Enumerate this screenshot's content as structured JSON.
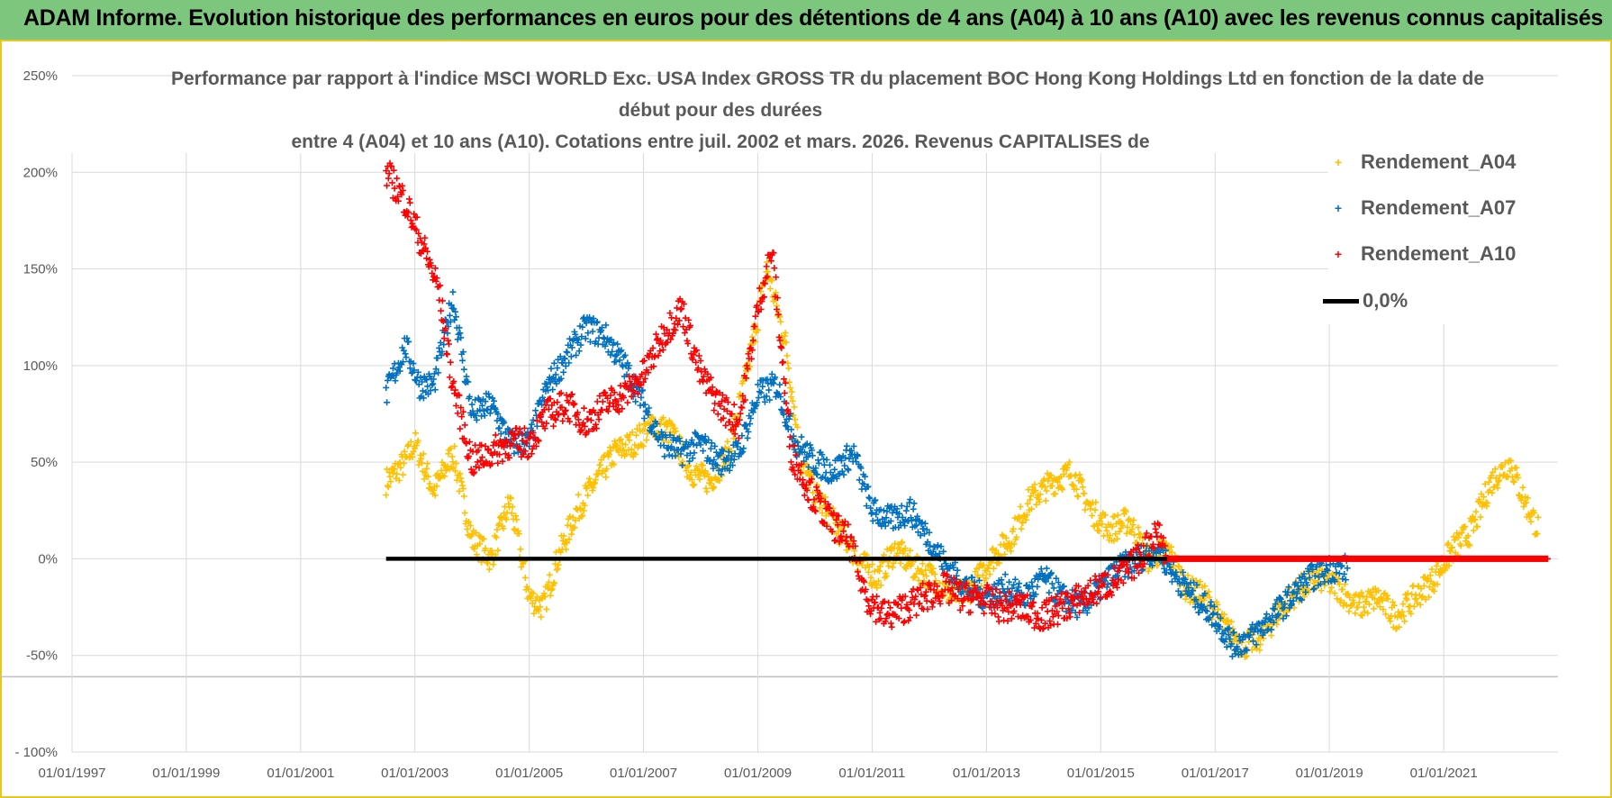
{
  "header": {
    "title": "ADAM Informe. Evolution historique des performances en euros pour des détentions de 4 ans (A04) à 10 ans (A10) avec les revenus connus capitalisés"
  },
  "chart_data": {
    "type": "scatter",
    "title_lines": [
      "Performance par rapport à l'indice MSCI WORLD Exc. USA Index GROSS TR  du placement BOC Hong Kong Holdings Ltd en fonction de la date de",
      "début pour des durées",
      "entre 4 (A04) et 10 ans (A10). Cotations entre juil. 2002 et mars. 2026. Revenus CAPITALISES de"
    ],
    "xlabel": "",
    "ylabel": "",
    "ylim": [
      -100,
      250
    ],
    "xlim": [
      "1997-01-01",
      "2023-01-01"
    ],
    "x_ticks": [
      "01/01/1997",
      "01/01/1999",
      "01/01/2001",
      "01/01/2003",
      "01/01/2005",
      "01/01/2007",
      "01/01/2009",
      "01/01/2011",
      "01/01/2013",
      "01/01/2015",
      "01/01/2017",
      "01/01/2019",
      "01/01/2021"
    ],
    "y_ticks": [
      "250%",
      "200%",
      "150%",
      "100%",
      "50%",
      "0%",
      "-50%",
      "- 100%"
    ],
    "y_tick_values": [
      250,
      200,
      150,
      100,
      50,
      0,
      -50,
      -100
    ],
    "grid": true,
    "legend_position": "top-right",
    "series": [
      {
        "name": "Rendement_A04",
        "color": "#ffc000",
        "marker": "plus",
        "points": [
          [
            "2002-07-01",
            40
          ],
          [
            "2002-11-01",
            50
          ],
          [
            "2003-01-01",
            60
          ],
          [
            "2003-05-01",
            35
          ],
          [
            "2003-09-01",
            55
          ],
          [
            "2004-01-01",
            10
          ],
          [
            "2004-05-01",
            0
          ],
          [
            "2004-09-01",
            30
          ],
          [
            "2005-01-01",
            -20
          ],
          [
            "2005-04-01",
            -25
          ],
          [
            "2005-07-01",
            0
          ],
          [
            "2005-11-01",
            25
          ],
          [
            "2006-03-01",
            40
          ],
          [
            "2006-07-01",
            55
          ],
          [
            "2006-11-01",
            60
          ],
          [
            "2007-03-01",
            70
          ],
          [
            "2007-07-01",
            65
          ],
          [
            "2007-11-01",
            45
          ],
          [
            "2008-03-01",
            40
          ],
          [
            "2008-07-01",
            55
          ],
          [
            "2008-11-01",
            100
          ],
          [
            "2009-03-01",
            150
          ],
          [
            "2009-07-01",
            110
          ],
          [
            "2009-10-01",
            50
          ],
          [
            "2010-02-01",
            30
          ],
          [
            "2010-06-01",
            15
          ],
          [
            "2010-10-01",
            0
          ],
          [
            "2011-02-01",
            -10
          ],
          [
            "2011-06-01",
            5
          ],
          [
            "2011-10-01",
            -5
          ],
          [
            "2012-02-01",
            -10
          ],
          [
            "2012-06-01",
            -20
          ],
          [
            "2012-10-01",
            -15
          ],
          [
            "2013-02-01",
            0
          ],
          [
            "2013-06-01",
            10
          ],
          [
            "2013-10-01",
            30
          ],
          [
            "2014-03-01",
            40
          ],
          [
            "2014-07-01",
            45
          ],
          [
            "2014-11-01",
            25
          ],
          [
            "2015-03-01",
            15
          ],
          [
            "2015-07-01",
            20
          ],
          [
            "2015-11-01",
            0
          ],
          [
            "2016-03-01",
            5
          ],
          [
            "2016-07-01",
            -15
          ],
          [
            "2016-11-01",
            -20
          ],
          [
            "2017-03-01",
            -35
          ],
          [
            "2017-07-01",
            -45
          ],
          [
            "2017-11-01",
            -40
          ],
          [
            "2018-03-01",
            -25
          ],
          [
            "2018-07-01",
            -15
          ],
          [
            "2018-11-01",
            -10
          ],
          [
            "2019-03-01",
            -15
          ],
          [
            "2019-07-01",
            -25
          ],
          [
            "2019-11-01",
            -20
          ],
          [
            "2020-03-01",
            -30
          ],
          [
            "2020-07-01",
            -20
          ],
          [
            "2020-11-01",
            -10
          ],
          [
            "2021-03-01",
            5
          ],
          [
            "2021-07-01",
            15
          ],
          [
            "2021-11-01",
            40
          ],
          [
            "2022-03-01",
            50
          ],
          [
            "2022-06-01",
            30
          ],
          [
            "2022-09-01",
            15
          ]
        ]
      },
      {
        "name": "Rendement_A07",
        "color": "#0070c0",
        "marker": "plus",
        "points": [
          [
            "2002-07-01",
            85
          ],
          [
            "2002-11-01",
            110
          ],
          [
            "2003-02-01",
            90
          ],
          [
            "2003-05-01",
            90
          ],
          [
            "2003-09-01",
            135
          ],
          [
            "2004-01-01",
            75
          ],
          [
            "2004-05-01",
            80
          ],
          [
            "2004-09-01",
            60
          ],
          [
            "2005-01-01",
            60
          ],
          [
            "2005-05-01",
            90
          ],
          [
            "2005-09-01",
            105
          ],
          [
            "2006-01-01",
            120
          ],
          [
            "2006-05-01",
            115
          ],
          [
            "2006-09-01",
            100
          ],
          [
            "2007-01-01",
            80
          ],
          [
            "2007-05-01",
            60
          ],
          [
            "2007-09-01",
            55
          ],
          [
            "2008-01-01",
            60
          ],
          [
            "2008-05-01",
            50
          ],
          [
            "2008-09-01",
            55
          ],
          [
            "2009-01-01",
            85
          ],
          [
            "2009-05-01",
            90
          ],
          [
            "2009-09-01",
            60
          ],
          [
            "2010-01-01",
            50
          ],
          [
            "2010-05-01",
            45
          ],
          [
            "2010-09-01",
            55
          ],
          [
            "2011-01-01",
            25
          ],
          [
            "2011-05-01",
            20
          ],
          [
            "2011-09-01",
            25
          ],
          [
            "2012-01-01",
            10
          ],
          [
            "2012-05-01",
            -5
          ],
          [
            "2012-09-01",
            -15
          ],
          [
            "2013-01-01",
            -20
          ],
          [
            "2013-05-01",
            -15
          ],
          [
            "2013-09-01",
            -20
          ],
          [
            "2014-01-01",
            -10
          ],
          [
            "2014-05-01",
            -20
          ],
          [
            "2014-09-01",
            -25
          ],
          [
            "2015-01-01",
            -15
          ],
          [
            "2015-05-01",
            -5
          ],
          [
            "2015-09-01",
            0
          ],
          [
            "2016-01-01",
            5
          ],
          [
            "2016-05-01",
            -10
          ],
          [
            "2016-09-01",
            -20
          ],
          [
            "2017-01-01",
            -30
          ],
          [
            "2017-05-01",
            -45
          ],
          [
            "2017-09-01",
            -40
          ],
          [
            "2018-01-01",
            -30
          ],
          [
            "2018-05-01",
            -20
          ],
          [
            "2018-09-01",
            -10
          ],
          [
            "2019-01-01",
            -5
          ],
          [
            "2019-05-01",
            -5
          ]
        ]
      },
      {
        "name": "Rendement_A10",
        "color": "#ff0000",
        "marker": "plus",
        "points": [
          [
            "2002-07-01",
            200
          ],
          [
            "2002-11-01",
            185
          ],
          [
            "2003-03-01",
            160
          ],
          [
            "2003-06-01",
            140
          ],
          [
            "2003-09-01",
            90
          ],
          [
            "2004-01-01",
            50
          ],
          [
            "2004-05-01",
            55
          ],
          [
            "2004-09-01",
            60
          ],
          [
            "2005-01-01",
            60
          ],
          [
            "2005-05-01",
            75
          ],
          [
            "2005-09-01",
            80
          ],
          [
            "2006-01-01",
            70
          ],
          [
            "2006-05-01",
            80
          ],
          [
            "2006-09-01",
            85
          ],
          [
            "2007-01-01",
            95
          ],
          [
            "2007-05-01",
            115
          ],
          [
            "2007-09-01",
            130
          ],
          [
            "2008-01-01",
            95
          ],
          [
            "2008-05-01",
            80
          ],
          [
            "2008-09-01",
            70
          ],
          [
            "2009-01-01",
            130
          ],
          [
            "2009-04-01",
            160
          ],
          [
            "2009-08-01",
            55
          ],
          [
            "2009-12-01",
            35
          ],
          [
            "2010-04-01",
            20
          ],
          [
            "2010-08-01",
            10
          ],
          [
            "2010-12-01",
            -20
          ],
          [
            "2011-04-01",
            -30
          ],
          [
            "2011-08-01",
            -25
          ],
          [
            "2011-12-01",
            -20
          ],
          [
            "2012-04-01",
            -15
          ],
          [
            "2012-08-01",
            -20
          ],
          [
            "2012-12-01",
            -20
          ],
          [
            "2013-04-01",
            -25
          ],
          [
            "2013-08-01",
            -25
          ],
          [
            "2014-01-01",
            -30
          ],
          [
            "2014-05-01",
            -25
          ],
          [
            "2014-09-01",
            -20
          ],
          [
            "2015-01-01",
            -15
          ],
          [
            "2015-05-01",
            -10
          ],
          [
            "2015-09-01",
            0
          ],
          [
            "2016-01-01",
            15
          ],
          [
            "2016-03-01",
            0
          ],
          [
            "2016-09-01",
            0
          ],
          [
            "2017-09-01",
            0
          ],
          [
            "2018-09-01",
            0
          ],
          [
            "2019-09-01",
            0
          ],
          [
            "2020-09-01",
            0
          ],
          [
            "2021-09-01",
            0
          ],
          [
            "2022-11-01",
            0
          ]
        ]
      },
      {
        "name": "0,0%",
        "color": "#000000",
        "marker": "line",
        "points": [
          [
            "2002-07-01",
            0
          ],
          [
            "2016-03-01",
            0
          ]
        ]
      }
    ]
  }
}
